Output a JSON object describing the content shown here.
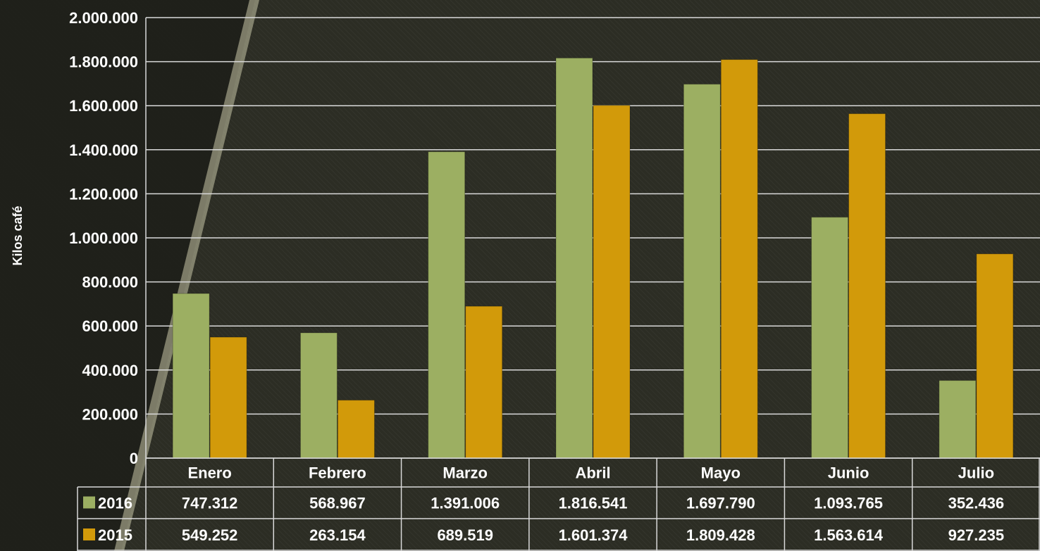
{
  "chart_data": {
    "type": "bar",
    "title": "",
    "xlabel": "",
    "ylabel": "Kilos café",
    "ylim": [
      0,
      2000000
    ],
    "yticks": [
      "0",
      "200.000",
      "400.000",
      "600.000",
      "800.000",
      "1.000.000",
      "1.200.000",
      "1.400.000",
      "1.600.000",
      "1.800.000",
      "2.000.000"
    ],
    "categories": [
      "Enero",
      "Febrero",
      "Marzo",
      "Abril",
      "Mayo",
      "Junio",
      "Julio"
    ],
    "grid": true,
    "legend": "data-table",
    "series": [
      {
        "name": "2016",
        "color": "#9caf62",
        "values": [
          747312,
          568967,
          1391006,
          1816541,
          1697790,
          1093765,
          352436
        ],
        "labels": [
          "747.312",
          "568.967",
          "1.391.006",
          "1.816.541",
          "1.697.790",
          "1.093.765",
          "352.436"
        ]
      },
      {
        "name": "2015",
        "color": "#d29a0a",
        "values": [
          549252,
          263154,
          689519,
          1601374,
          1809428,
          1563614,
          927235
        ],
        "labels": [
          "549.252",
          "263.154",
          "689.519",
          "1.601.374",
          "1.809.428",
          "1.563.614",
          "927.235"
        ]
      }
    ]
  }
}
